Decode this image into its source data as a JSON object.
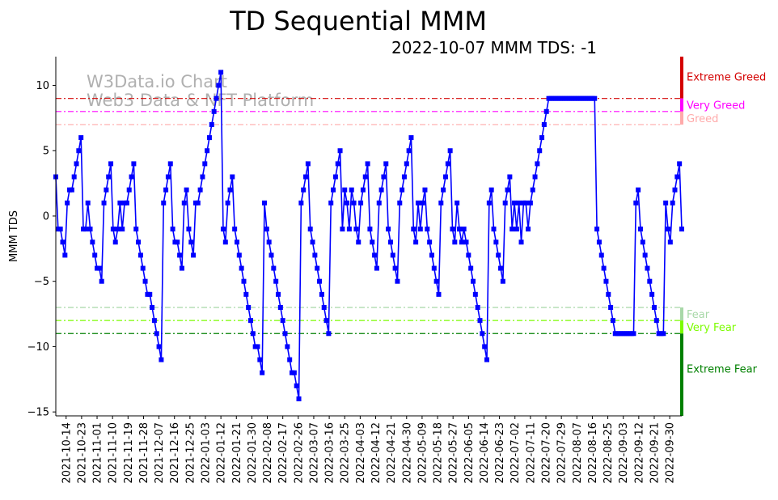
{
  "chart_data": {
    "type": "line",
    "title": "TD Sequential MMM",
    "subtitle": "2022-10-07 MMM TDS: -1",
    "xlabel": "",
    "ylabel": "MMM TDS",
    "ylim": [
      -15.3,
      12.2
    ],
    "yticks": [
      10,
      5,
      0,
      -5,
      -10,
      -15
    ],
    "grid": false,
    "x_start": "2021-10-08",
    "x_end": "2022-10-07",
    "x_tick_start": "2021-10-14",
    "x_tick_step_days": 9,
    "xticks": [
      "2021-10-14",
      "2021-10-23",
      "2021-11-01",
      "2021-11-10",
      "2021-11-19",
      "2021-11-28",
      "2021-12-07",
      "2021-12-16",
      "2021-12-25",
      "2022-01-03",
      "2022-01-12",
      "2022-01-21",
      "2022-01-30",
      "2022-02-08",
      "2022-02-17",
      "2022-02-26",
      "2022-03-07",
      "2022-03-16",
      "2022-03-25",
      "2022-04-03",
      "2022-04-12",
      "2022-04-21",
      "2022-04-30",
      "2022-05-09",
      "2022-05-18",
      "2022-05-27",
      "2022-06-05",
      "2022-06-14",
      "2022-06-23",
      "2022-07-02",
      "2022-07-11",
      "2022-07-20",
      "2022-07-29",
      "2022-08-07",
      "2022-08-16",
      "2022-08-25",
      "2022-09-03",
      "2022-09-12",
      "2022-09-21",
      "2022-09-30"
    ],
    "series": [
      {
        "name": "MMM TDS",
        "color": "#0000ff",
        "marker": "square",
        "values": [
          3,
          -1,
          -1,
          -2,
          -3,
          1,
          2,
          2,
          3,
          4,
          5,
          6,
          -1,
          -1,
          1,
          -1,
          -2,
          -3,
          -4,
          -4,
          -5,
          1,
          2,
          3,
          4,
          -1,
          -2,
          -1,
          1,
          -1,
          1,
          1,
          2,
          3,
          4,
          -1,
          -2,
          -3,
          -4,
          -5,
          -6,
          -6,
          -7,
          -8,
          -9,
          -10,
          -11,
          1,
          2,
          3,
          4,
          -1,
          -2,
          -2,
          -3,
          -4,
          1,
          2,
          -1,
          -2,
          -3,
          1,
          1,
          2,
          3,
          4,
          5,
          6,
          7,
          8,
          9,
          10,
          11,
          -1,
          -2,
          1,
          2,
          3,
          -1,
          -2,
          -3,
          -4,
          -5,
          -6,
          -7,
          -8,
          -9,
          -10,
          -10,
          -11,
          -12,
          1,
          -1,
          -2,
          -3,
          -4,
          -5,
          -6,
          -7,
          -8,
          -9,
          -10,
          -11,
          -12,
          -12,
          -13,
          -14,
          1,
          2,
          3,
          4,
          -1,
          -2,
          -3,
          -4,
          -5,
          -6,
          -7,
          -8,
          -9,
          1,
          2,
          3,
          4,
          5,
          -1,
          2,
          1,
          -1,
          2,
          1,
          -1,
          -2,
          1,
          2,
          3,
          4,
          -1,
          -2,
          -3,
          -4,
          1,
          2,
          3,
          4,
          -1,
          -2,
          -3,
          -4,
          -5,
          1,
          2,
          3,
          4,
          5,
          6,
          -1,
          -2,
          1,
          -1,
          1,
          2,
          -1,
          -2,
          -3,
          -4,
          -5,
          -6,
          1,
          2,
          3,
          4,
          5,
          -1,
          -2,
          1,
          -1,
          -2,
          -1,
          -2,
          -3,
          -4,
          -5,
          -6,
          -7,
          -8,
          -9,
          -10,
          -11,
          1,
          2,
          -1,
          -2,
          -3,
          -4,
          -5,
          1,
          2,
          3,
          -1,
          1,
          -1,
          1,
          -2,
          1,
          1,
          -1,
          1,
          2,
          3,
          4,
          5,
          6,
          7,
          8,
          9,
          9,
          9,
          9,
          9,
          9,
          9,
          9,
          9,
          9,
          9,
          9,
          9,
          9,
          9,
          9,
          9,
          9,
          9,
          9,
          9,
          -1,
          -2,
          -3,
          -4,
          -5,
          -6,
          -7,
          -8,
          -9,
          -9,
          -9,
          -9,
          -9,
          -9,
          -9,
          -9,
          -9,
          1,
          2,
          -1,
          -2,
          -3,
          -4,
          -5,
          -6,
          -7,
          -8,
          -9,
          -9,
          -9,
          1,
          -1,
          -2,
          1,
          2,
          3,
          4,
          -1
        ]
      }
    ],
    "thresholds": [
      {
        "value": 9,
        "label": "Extreme Greed",
        "color": "#d40000"
      },
      {
        "value": 8,
        "label": "Very Greed",
        "color": "#ff00ff"
      },
      {
        "value": 7,
        "label": "Greed",
        "color": "#ffaaaa"
      },
      {
        "value": -7,
        "label": "Fear",
        "color": "#a8d8a8"
      },
      {
        "value": -8,
        "label": "Very Fear",
        "color": "#7cfc00"
      },
      {
        "value": -9,
        "label": "Extreme Fear",
        "color": "#008000"
      }
    ],
    "watermark": [
      "W3Data.io Chart",
      "Web3 Data & NFT Platform"
    ]
  }
}
